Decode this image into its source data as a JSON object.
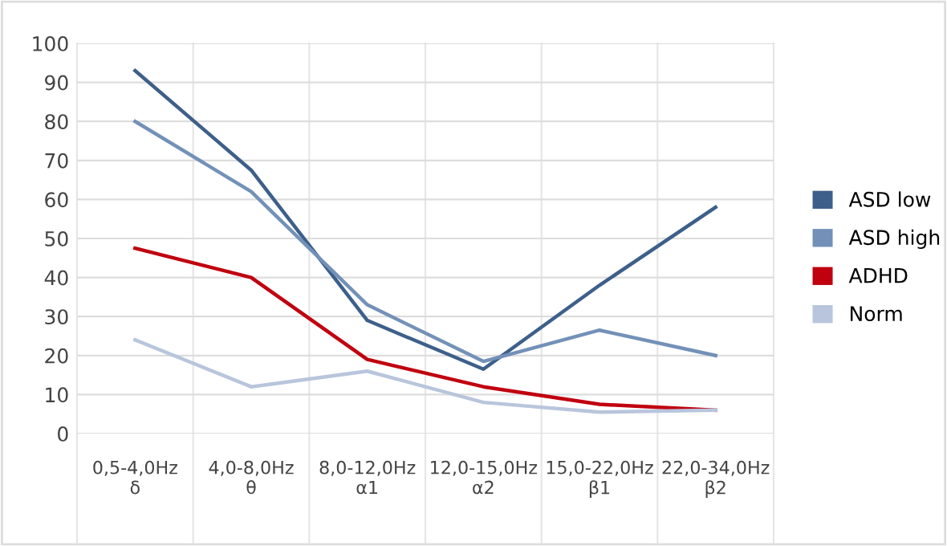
{
  "chart_data": {
    "type": "line",
    "categories": [
      "0,5-4,0Hz\nδ",
      "4,0-8,0Hz\nθ",
      "8,0-12,0Hz\nα1",
      "12,0-15,0Hz\nα2",
      "15,0-22,0Hz\nβ1",
      "22,0-34,0Hz\nβ2"
    ],
    "series": [
      {
        "name": "ASD low",
        "color": "#3d5f8a",
        "values": [
          93,
          67.5,
          29,
          16.5,
          38,
          58
        ]
      },
      {
        "name": "ASD high",
        "color": "#7391b8",
        "values": [
          80,
          62,
          33,
          18.5,
          26.5,
          20
        ]
      },
      {
        "name": "ADHD",
        "color": "#c0000f",
        "values": [
          47.5,
          40,
          19,
          12,
          7.5,
          6
        ]
      },
      {
        "name": "Norm",
        "color": "#b8c5dc",
        "values": [
          24,
          12,
          16,
          8,
          5.5,
          6
        ]
      }
    ],
    "ylim": [
      0,
      100
    ],
    "yticks": [
      0,
      10,
      20,
      30,
      40,
      50,
      60,
      70,
      80,
      90,
      100
    ],
    "grid": true,
    "legend": "right",
    "marker": "none",
    "line_style": "solid"
  }
}
